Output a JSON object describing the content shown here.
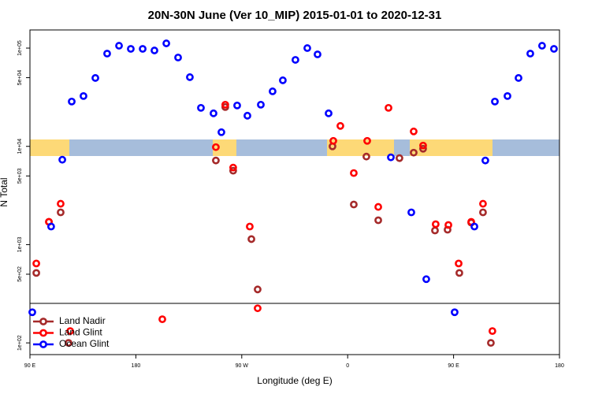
{
  "chart_data": {
    "type": "scatter",
    "title": "20N-30N June (Ver 10_MIP)   2015-01-01 to 2020-12-31",
    "x_label": "Longitude (deg E)",
    "y_label": "N Total",
    "log_y": true,
    "legend": "bottom-left",
    "xlim": [
      90,
      540
    ],
    "xticks": [
      {
        "value": 90,
        "label": "90 E"
      },
      180,
      {
        "value": 270,
        "label": "90 W"
      },
      {
        "value": 360,
        "label": "0"
      },
      {
        "value": 450,
        "label": "90 E"
      },
      {
        "value": 540,
        "label": "180"
      }
    ],
    "ylim": [
      76,
      153000
    ],
    "yticks": [
      {
        "value": 100,
        "label": "1e+02"
      },
      {
        "value": 500,
        "label": "5e+02"
      },
      {
        "value": 1000,
        "label": "1e+03"
      },
      {
        "value": 5000,
        "label": "5e+03"
      },
      {
        "value": 10000,
        "label": "1e+04"
      },
      {
        "value": 50000,
        "label": "5e+04"
      },
      {
        "value": 100000,
        "label": "1e+05"
      }
    ],
    "series": [
      {
        "name": "Land Nadir",
        "color": "#a52a2a",
        "x": [
          95.4,
          106.1,
          116.1,
          122.8,
          248,
          256,
          262.7,
          278.2,
          283.5,
          347.1,
          365.2,
          375.9,
          386,
          404,
          416.1,
          424.1,
          434.2,
          444.9,
          454.9,
          465,
          475,
          481.7
        ],
        "values": [
          515,
          1706,
          2130,
          100,
          7180,
          25120,
          5650,
          1138,
          350,
          10000,
          2560,
          7870,
          1770,
          7590,
          8630,
          9460,
          1393,
          1419,
          515,
          1675,
          2130,
          100
        ]
      },
      {
        "name": "Land Glint",
        "color": "#ff0000",
        "x": [
          95.4,
          106.1,
          116.1,
          124.2,
          202.5,
          248,
          256,
          262.7,
          276.8,
          283.5,
          347.8,
          353.8,
          365.2,
          376.6,
          386,
          394.7,
          416.1,
          424.1,
          434.8,
          445.6,
          454.3,
          465,
          475,
          483
        ],
        "values": [
          643,
          1706,
          2606,
          132,
          174,
          9820,
          26550,
          6080,
          1528,
          225,
          11380,
          16140,
          5350,
          11380,
          2420,
          24660,
          14190,
          10190,
          1614,
          1585,
          643,
          1706,
          2606,
          132
        ]
      },
      {
        "name": "Ocean Glint",
        "color": "#0000ff",
        "x": [
          92,
          108,
          117.5,
          125.5,
          135.5,
          145.6,
          155.6,
          165.7,
          175.7,
          185.8,
          195.8,
          205.9,
          215.9,
          225.9,
          235.3,
          246,
          252.7,
          266.1,
          274.8,
          286.2,
          296.2,
          304.9,
          315.6,
          325.7,
          334.4,
          343.8,
          396.7,
          414.1,
          426.8,
          450.9,
          467.7,
          477,
          485.1,
          495.8,
          505.2,
          515.2,
          525.2,
          535.3
        ],
        "values": [
          205,
          1528,
          7310,
          28580,
          32500,
          49660,
          87900,
          105700,
          98200,
          98200,
          94600,
          111700,
          80200,
          50600,
          24660,
          21680,
          13930,
          26060,
          20510,
          26550,
          36300,
          47000,
          75900,
          100000,
          86300,
          21680,
          7730,
          2130,
          445,
          205,
          1528,
          7180,
          28580,
          32500,
          49660,
          87900,
          105700,
          98200
        ]
      }
    ]
  }
}
